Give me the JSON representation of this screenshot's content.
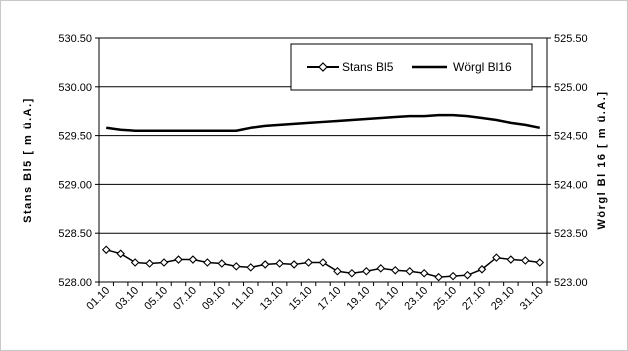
{
  "chart_data": {
    "type": "line",
    "title": "",
    "x": [
      "01.10",
      "02.10",
      "03.10",
      "04.10",
      "05.10",
      "06.10",
      "07.10",
      "08.10",
      "09.10",
      "10.10",
      "11.10",
      "12.10",
      "13.10",
      "14.10",
      "15.10",
      "16.10",
      "17.10",
      "18.10",
      "19.10",
      "20.10",
      "21.10",
      "22.10",
      "23.10",
      "24.10",
      "25.10",
      "26.10",
      "27.10",
      "28.10",
      "29.10",
      "30.10",
      "31.10"
    ],
    "x_tick_labels": [
      "01.10",
      "03.10",
      "05.10",
      "07.10",
      "09.10",
      "11.10",
      "13.10",
      "15.10",
      "17.10",
      "19.10",
      "21.10",
      "23.10",
      "25.10",
      "27.10",
      "29.10",
      "31.10"
    ],
    "ylabel_left": "Stans Bl5 [ m ü.A.]",
    "ylabel_right": "Wörgl Bl 16 [ m ü.A.]",
    "ylim_left": [
      528.0,
      530.5
    ],
    "ylim_right": [
      523.0,
      525.5
    ],
    "y_ticks_left": [
      "528.00",
      "528.50",
      "529.00",
      "529.50",
      "530.00",
      "530.50"
    ],
    "y_ticks_right": [
      "523.00",
      "523.50",
      "524.00",
      "524.50",
      "525.00",
      "525.50"
    ],
    "grid": true,
    "legend_position": "top-right",
    "series": [
      {
        "name": "Stans Bl5",
        "axis": "left",
        "marker": "diamond",
        "values": [
          528.33,
          528.29,
          528.2,
          528.19,
          528.2,
          528.23,
          528.23,
          528.2,
          528.19,
          528.16,
          528.15,
          528.18,
          528.19,
          528.18,
          528.2,
          528.2,
          528.11,
          528.09,
          528.11,
          528.14,
          528.12,
          528.11,
          528.09,
          528.05,
          528.06,
          528.07,
          528.13,
          528.25,
          528.23,
          528.22,
          528.2
        ]
      },
      {
        "name": "Wörgl Bl16",
        "axis": "right",
        "marker": "none",
        "values": [
          524.58,
          524.56,
          524.55,
          524.55,
          524.55,
          524.55,
          524.55,
          524.55,
          524.55,
          524.55,
          524.58,
          524.6,
          524.61,
          524.62,
          524.63,
          524.64,
          524.65,
          524.66,
          524.67,
          524.68,
          524.69,
          524.7,
          524.7,
          524.71,
          524.71,
          524.7,
          524.68,
          524.66,
          524.63,
          524.61,
          524.58
        ]
      }
    ]
  }
}
